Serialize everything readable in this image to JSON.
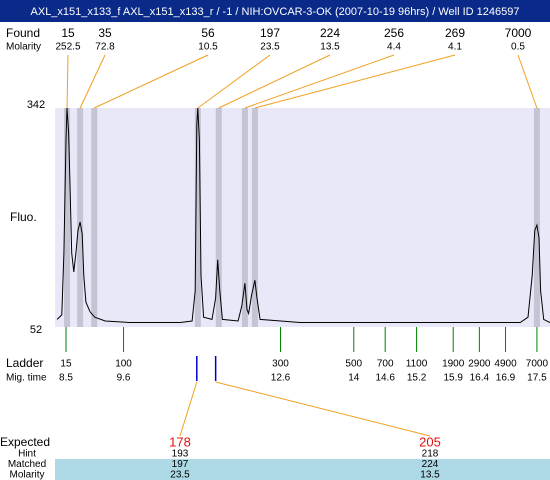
{
  "chart_data": {
    "type": "electropherogram",
    "title": "AXL_x151_x133_f  AXL_x151_x133_r / -1 / NIH:OVCAR-3-OK (2007-10-19 96hrs) / Well ID 1246597",
    "found": {
      "label": "Found",
      "sizes": [
        15,
        35,
        56,
        197,
        224,
        256,
        269,
        7000
      ],
      "molarity_label": "Molarity",
      "molarity": [
        252.5,
        72.8,
        10.5,
        23.5,
        13.5,
        4.4,
        4.1,
        0.5
      ],
      "times": [
        8.52,
        8.77,
        9.04,
        11.02,
        11.42,
        11.92,
        12.11,
        17.5
      ]
    },
    "ylabel": "Fluo.",
    "ylim": [
      52,
      342
    ],
    "yticks": [
      52,
      342
    ],
    "xlim": [
      8.29,
      17.75
    ],
    "trace": {
      "x": [
        8.33,
        8.42,
        8.46,
        8.5,
        8.52,
        8.55,
        8.58,
        8.61,
        8.65,
        8.69,
        8.73,
        8.77,
        8.81,
        8.84,
        8.88,
        8.96,
        9.05,
        9.25,
        9.72,
        10.68,
        10.91,
        10.97,
        11.0,
        11.02,
        11.05,
        11.08,
        11.13,
        11.29,
        11.36,
        11.4,
        11.44,
        11.49,
        11.79,
        11.86,
        11.92,
        11.96,
        11.99,
        12.05,
        12.11,
        12.15,
        12.21,
        12.97,
        14.88,
        17.18,
        17.33,
        17.41,
        17.46,
        17.5,
        17.54,
        17.57,
        17.63,
        17.75
      ],
      "y": [
        62,
        68,
        150,
        300,
        342,
        310,
        230,
        150,
        125,
        150,
        180,
        191,
        175,
        120,
        85,
        72,
        65,
        60,
        58,
        58,
        60,
        100,
        320,
        342,
        300,
        120,
        65,
        62,
        90,
        141,
        100,
        62,
        60,
        80,
        110,
        75,
        70,
        95,
        114,
        90,
        62,
        58,
        58,
        58,
        65,
        120,
        180,
        187,
        170,
        100,
        62,
        58
      ]
    },
    "ladder": {
      "label": "Ladder",
      "sizes": [
        15,
        100,
        300,
        500,
        700,
        1100,
        1900,
        2900,
        4900,
        7000
      ],
      "time_label": "Mig. time",
      "times": [
        8.5,
        9.6,
        12.6,
        14,
        14.6,
        15.2,
        15.9,
        16.4,
        16.9,
        17.5
      ]
    },
    "expected": {
      "label": "Expected",
      "sizes": [
        178,
        205
      ],
      "times": [
        11.0,
        11.36
      ],
      "rows": [
        {
          "label": "Hint",
          "values": [
            193,
            218
          ]
        },
        {
          "label": "Matched",
          "values": [
            197,
            224
          ]
        },
        {
          "label": "Molarity",
          "values": [
            23.5,
            13.5
          ]
        }
      ]
    }
  }
}
